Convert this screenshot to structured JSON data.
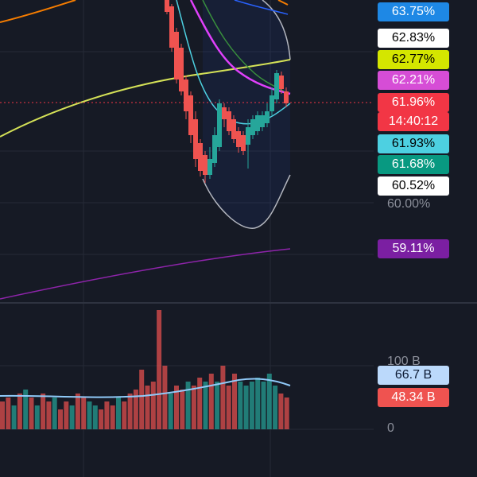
{
  "price_axis": {
    "labels": [
      {
        "text": "63.75%"
      },
      {
        "text": "62.83%"
      },
      {
        "text": "62.77%"
      },
      {
        "text": "62.21%"
      },
      {
        "text": "61.96%",
        "sub": "14:40:12"
      },
      {
        "text": "61.93%"
      },
      {
        "text": "61.68%"
      },
      {
        "text": "60.52%"
      },
      {
        "text": "60.00%"
      },
      {
        "text": "59.11%"
      }
    ]
  },
  "volume_axis": {
    "labels": [
      {
        "text": "100 B"
      },
      {
        "text": "66.7 B"
      },
      {
        "text": "48.34 B"
      },
      {
        "text": "0"
      }
    ]
  }
}
